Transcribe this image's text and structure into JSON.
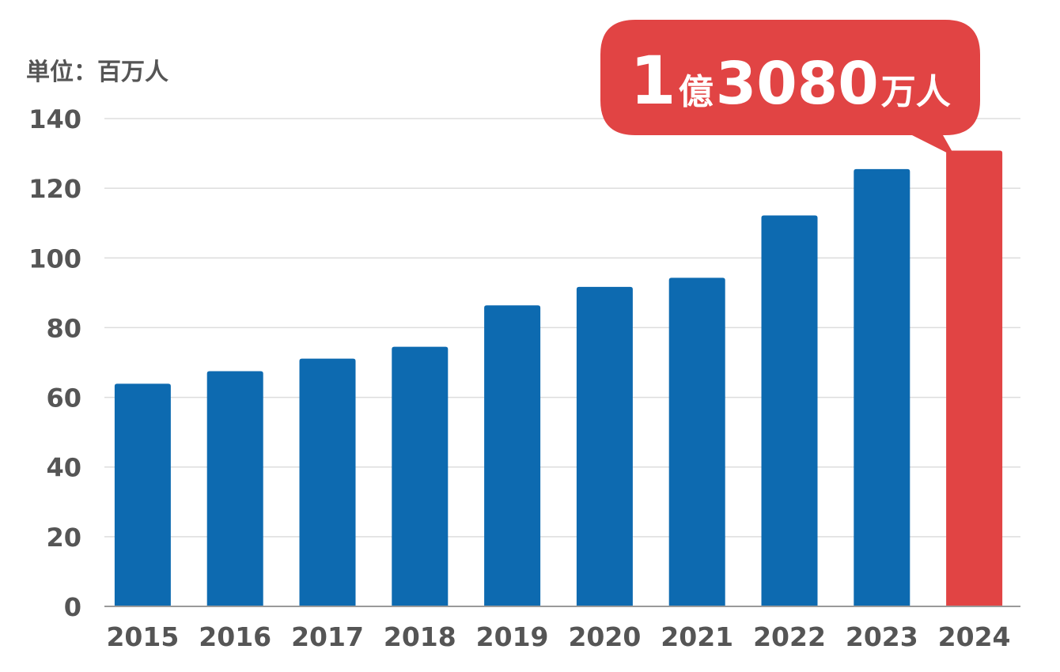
{
  "chart_data": {
    "type": "bar",
    "unit_label": "単位：百万人",
    "categories": [
      "2015",
      "2016",
      "2017",
      "2018",
      "2019",
      "2020",
      "2021",
      "2022",
      "2023",
      "2024"
    ],
    "values": [
      63.9,
      67.5,
      71.1,
      74.5,
      86.4,
      91.7,
      94.3,
      112.2,
      125.5,
      130.8
    ],
    "ylim": [
      0,
      140
    ],
    "yticks": [
      "0",
      "20",
      "40",
      "60",
      "80",
      "100",
      "120",
      "140"
    ],
    "grid": true,
    "highlight": {
      "category": "2024",
      "parts": [
        "1",
        "億",
        "3080",
        "万人"
      ]
    },
    "colors": {
      "bar": "#0d6ab0",
      "highlight_bar": "#e14444",
      "callout": "#e14444",
      "grid": "#dddddd",
      "axis": "#9a9a9a",
      "label": "#555555"
    }
  }
}
